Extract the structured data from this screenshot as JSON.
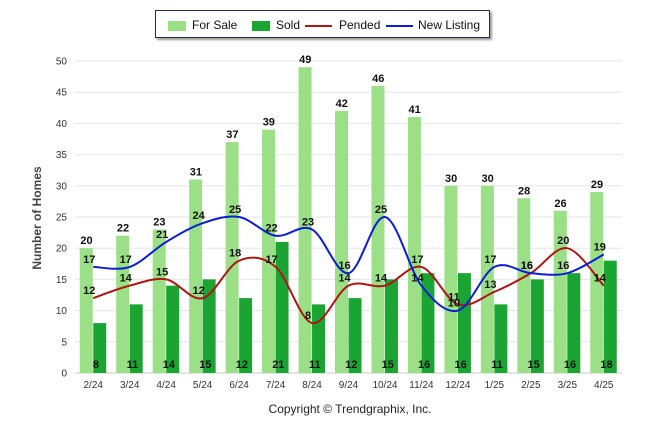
{
  "legend": {
    "for_sale": "For Sale",
    "sold": "Sold",
    "pended": "Pended",
    "new_listing": "New Listing"
  },
  "footer": "Copyright © Trendgraphix, Inc.",
  "chart_data": {
    "type": "bar",
    "title": "",
    "xlabel": "",
    "ylabel": "Number of Homes",
    "ylim": [
      0,
      50
    ],
    "yticks": [
      0,
      5,
      10,
      15,
      20,
      25,
      30,
      35,
      40,
      45,
      50
    ],
    "grid": true,
    "legend_position": "top",
    "categories": [
      "2/24",
      "3/24",
      "4/24",
      "5/24",
      "6/24",
      "7/24",
      "8/24",
      "9/24",
      "10/24",
      "11/24",
      "12/24",
      "1/25",
      "2/25",
      "3/25",
      "4/25"
    ],
    "series": [
      {
        "name": "For Sale",
        "kind": "bar",
        "color": "#9be086",
        "values": [
          20,
          22,
          23,
          31,
          37,
          39,
          49,
          42,
          46,
          41,
          30,
          30,
          28,
          26,
          29
        ]
      },
      {
        "name": "Sold",
        "kind": "bar",
        "color": "#1aa533",
        "values": [
          8,
          11,
          14,
          15,
          12,
          21,
          11,
          12,
          15,
          16,
          16,
          11,
          15,
          16,
          18
        ]
      },
      {
        "name": "Pended",
        "kind": "line",
        "color": "#b01515",
        "values": [
          12,
          14,
          15,
          12,
          18,
          17,
          8,
          14,
          14,
          17,
          11,
          13,
          16,
          20,
          14
        ]
      },
      {
        "name": "New Listing",
        "kind": "line",
        "color": "#0b1ed6",
        "values": [
          17,
          17,
          21,
          24,
          25,
          22,
          23,
          16,
          25,
          14,
          10,
          17,
          16,
          16,
          19
        ]
      }
    ]
  }
}
